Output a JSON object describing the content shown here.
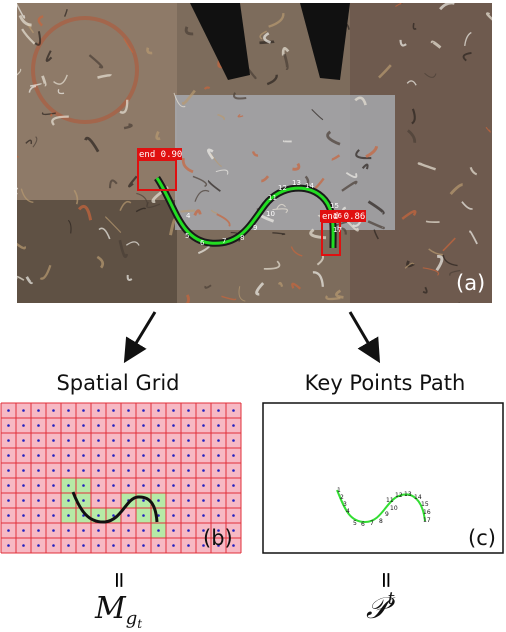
{
  "panel_a": {
    "detections": [
      {
        "label": "end 0.90"
      },
      {
        "label": "end 0.86"
      }
    ],
    "tag": "(a)"
  },
  "keypoints": [
    "1",
    "2",
    "3",
    "4",
    "5",
    "6",
    "7",
    "8",
    "9",
    "10",
    "11",
    "12",
    "13",
    "14",
    "15",
    "16",
    "17"
  ],
  "panel_b": {
    "title": "Spatial Grid",
    "tag": "(b)",
    "relation": "=",
    "symbol": {
      "base": "M",
      "sub": "g",
      "subsub": "t"
    }
  },
  "panel_c": {
    "title": "Key Points Path",
    "tag": "(c)",
    "relation": "=",
    "symbol": {
      "base": "𝒫",
      "sup": "t"
    }
  }
}
